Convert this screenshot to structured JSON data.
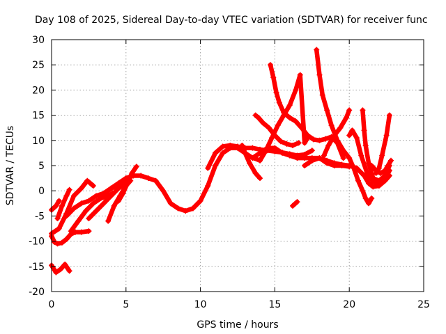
{
  "chart_data": {
    "type": "scatter",
    "title": "Day 108 of 2025, Sidereal Day-to-day VTEC variation (SDTVAR) for receiver func",
    "xlabel": "GPS time / hours",
    "ylabel": "SDTVAR / TECUs",
    "xlim": [
      0,
      25
    ],
    "ylim": [
      -20,
      30
    ],
    "xticks": [
      0,
      5,
      10,
      15,
      20,
      25
    ],
    "yticks": [
      -20,
      -15,
      -10,
      -5,
      0,
      5,
      10,
      15,
      20,
      25,
      30
    ],
    "grid": true,
    "legend": "none",
    "marker": "+",
    "color": "#ff0000",
    "series": [
      {
        "name": "trace-1",
        "x": [
          0.0,
          0.3,
          0.6,
          0.9,
          1.2
        ],
        "y": [
          -14.8,
          -16.2,
          -15.6,
          -14.6,
          -15.9
        ]
      },
      {
        "name": "trace-2",
        "x": [
          0.0,
          0.2,
          0.4,
          0.7,
          1.0,
          1.3,
          1.6,
          2.0,
          2.5
        ],
        "y": [
          -9.0,
          -10.2,
          -10.5,
          -10.3,
          -9.6,
          -8.6,
          -8.2,
          -8.2,
          -8.0
        ]
      },
      {
        "name": "trace-3",
        "x": [
          0.0,
          0.3,
          0.5
        ],
        "y": [
          -3.8,
          -3.0,
          -2.0
        ]
      },
      {
        "name": "trace-4",
        "x": [
          0.4,
          0.7,
          1.0,
          1.2
        ],
        "y": [
          -5.5,
          -3.0,
          -1.0,
          0.2
        ]
      },
      {
        "name": "trace-5",
        "x": [
          0.0,
          0.5,
          1.0,
          1.5,
          2.0,
          2.4,
          2.8
        ],
        "y": [
          -8.5,
          -7.5,
          -4.5,
          -1.0,
          0.5,
          2.0,
          1.0
        ]
      },
      {
        "name": "trace-6",
        "x": [
          1.3,
          1.8,
          2.3,
          2.8,
          3.3,
          3.8,
          4.1
        ],
        "y": [
          -8.0,
          -6.0,
          -4.0,
          -2.5,
          -1.5,
          -1.0,
          -0.5
        ]
      },
      {
        "name": "trace-7",
        "x": [
          1.0,
          1.5,
          2.0,
          2.5,
          3.0,
          3.5,
          4.0,
          4.5,
          5.0,
          5.5,
          6.0,
          6.5,
          7.0,
          7.5,
          8.0,
          8.5,
          9.0,
          9.5,
          10.0,
          10.5,
          11.0,
          11.5,
          12.0,
          12.5,
          13.0,
          13.5,
          14.0,
          14.5,
          15.0,
          15.5,
          16.0,
          16.5,
          17.0,
          17.5,
          18.0,
          18.5,
          19.0,
          19.5,
          20.0
        ],
        "y": [
          -5.0,
          -3.5,
          -2.5,
          -2.0,
          -1.0,
          -0.5,
          0.5,
          1.5,
          2.5,
          3.0,
          3.0,
          2.5,
          2.0,
          0.0,
          -2.5,
          -3.5,
          -4.0,
          -3.5,
          -2.0,
          1.0,
          5.0,
          7.5,
          8.5,
          8.5,
          7.5,
          6.5,
          7.5,
          8.5,
          8.5,
          7.5,
          7.0,
          6.5,
          6.5,
          6.5,
          6.5,
          5.5,
          5.0,
          5.0,
          4.8
        ]
      },
      {
        "name": "trace-8",
        "x": [
          2.5,
          3.0,
          3.5,
          4.0,
          4.5,
          5.0
        ],
        "y": [
          -5.5,
          -4.0,
          -2.5,
          -1.0,
          0.5,
          1.5
        ]
      },
      {
        "name": "trace-9",
        "x": [
          3.8,
          4.2,
          4.6,
          5.0,
          5.3
        ],
        "y": [
          -6.0,
          -3.0,
          -1.0,
          1.0,
          2.0
        ]
      },
      {
        "name": "trace-10",
        "x": [
          3.5,
          3.8,
          4.2,
          4.5
        ],
        "y": [
          -1.0,
          0.0,
          0.8,
          1.0
        ]
      },
      {
        "name": "trace-11",
        "x": [
          4.5,
          4.8,
          5.1,
          5.4,
          5.7
        ],
        "y": [
          -2.0,
          -0.5,
          1.5,
          3.5,
          4.8
        ]
      },
      {
        "name": "trace-12",
        "x": [
          10.5,
          11.0,
          11.5,
          12.0,
          12.5,
          13.0,
          13.5,
          14.0,
          14.5,
          15.0,
          15.5,
          16.0,
          16.5,
          17.0,
          17.5
        ],
        "y": [
          4.5,
          7.5,
          8.8,
          9.0,
          8.8,
          8.5,
          8.5,
          8.2,
          8.0,
          7.8,
          7.6,
          7.3,
          7.0,
          7.2,
          8.0
        ]
      },
      {
        "name": "trace-13",
        "x": [
          12.8,
          13.0,
          13.3,
          13.7,
          14.0
        ],
        "y": [
          9.0,
          7.5,
          5.5,
          3.5,
          2.5
        ]
      },
      {
        "name": "trace-14",
        "x": [
          13.7,
          13.9,
          14.2,
          14.6,
          15.0,
          15.4,
          15.8,
          16.2,
          16.6
        ],
        "y": [
          15.0,
          14.5,
          13.5,
          12.5,
          11.0,
          9.8,
          9.3,
          9.0,
          9.5
        ]
      },
      {
        "name": "trace-15",
        "x": [
          13.6,
          14.0,
          14.4,
          14.8,
          15.2,
          15.6,
          16.0,
          16.4,
          16.7,
          17.0,
          17.2
        ],
        "y": [
          6.5,
          6.0,
          8.0,
          10.5,
          13.0,
          15.0,
          17.0,
          20.0,
          23.0,
          9.5,
          10.5
        ]
      },
      {
        "name": "trace-16",
        "x": [
          14.7,
          14.9,
          15.1,
          15.3,
          15.6,
          16.0,
          16.4,
          16.8,
          17.2,
          17.6,
          18.0,
          18.4,
          18.8,
          19.2,
          19.6
        ],
        "y": [
          25.0,
          22.5,
          19.5,
          17.5,
          15.5,
          14.5,
          13.8,
          12.5,
          11.0,
          10.2,
          10.0,
          10.3,
          10.7,
          9.5,
          6.5
        ]
      },
      {
        "name": "trace-17",
        "x": [
          16.2,
          16.5
        ],
        "y": [
          -3.0,
          -2.2
        ]
      },
      {
        "name": "trace-18",
        "x": [
          17.8,
          18.0,
          18.2,
          18.5,
          18.8,
          19.2,
          19.6,
          20.0,
          20.3,
          20.6,
          20.9,
          21.1,
          21.3,
          21.5
        ],
        "y": [
          28.0,
          23.0,
          19.0,
          16.0,
          13.0,
          10.0,
          8.0,
          6.5,
          4.5,
          2.0,
          0.0,
          -1.5,
          -2.5,
          -1.5
        ]
      },
      {
        "name": "trace-19",
        "x": [
          18.3,
          18.6,
          19.0,
          19.4,
          19.8,
          20.0
        ],
        "y": [
          7.0,
          9.0,
          11.0,
          12.5,
          14.5,
          16.0
        ]
      },
      {
        "name": "trace-20",
        "x": [
          17.0,
          17.5,
          18.0,
          18.5,
          19.0,
          19.5,
          20.0,
          20.5,
          21.0,
          21.3,
          21.6,
          22.0,
          22.4,
          22.7
        ],
        "y": [
          5.0,
          6.0,
          6.5,
          6.0,
          5.5,
          5.2,
          5.0,
          4.5,
          3.0,
          1.5,
          0.8,
          1.0,
          2.0,
          3.0
        ]
      },
      {
        "name": "trace-21",
        "x": [
          20.0,
          20.2,
          20.5,
          20.8,
          21.2,
          21.6,
          22.0,
          22.4,
          22.7
        ],
        "y": [
          11.0,
          12.0,
          10.5,
          7.0,
          3.5,
          1.8,
          1.5,
          2.2,
          4.0
        ]
      },
      {
        "name": "trace-22",
        "x": [
          20.9,
          21.0,
          21.1,
          21.3,
          21.6,
          22.0,
          22.4,
          22.7
        ],
        "y": [
          16.0,
          12.0,
          9.0,
          5.5,
          2.5,
          2.0,
          3.0,
          5.0
        ]
      },
      {
        "name": "trace-23",
        "x": [
          21.5,
          21.8,
          22.1,
          22.4,
          22.6,
          22.8
        ],
        "y": [
          5.0,
          4.0,
          3.5,
          4.0,
          5.0,
          6.0
        ]
      },
      {
        "name": "trace-24",
        "x": [
          21.8,
          22.0,
          22.2,
          22.5,
          22.7
        ],
        "y": [
          3.5,
          4.5,
          7.0,
          11.0,
          15.0
        ]
      }
    ]
  }
}
